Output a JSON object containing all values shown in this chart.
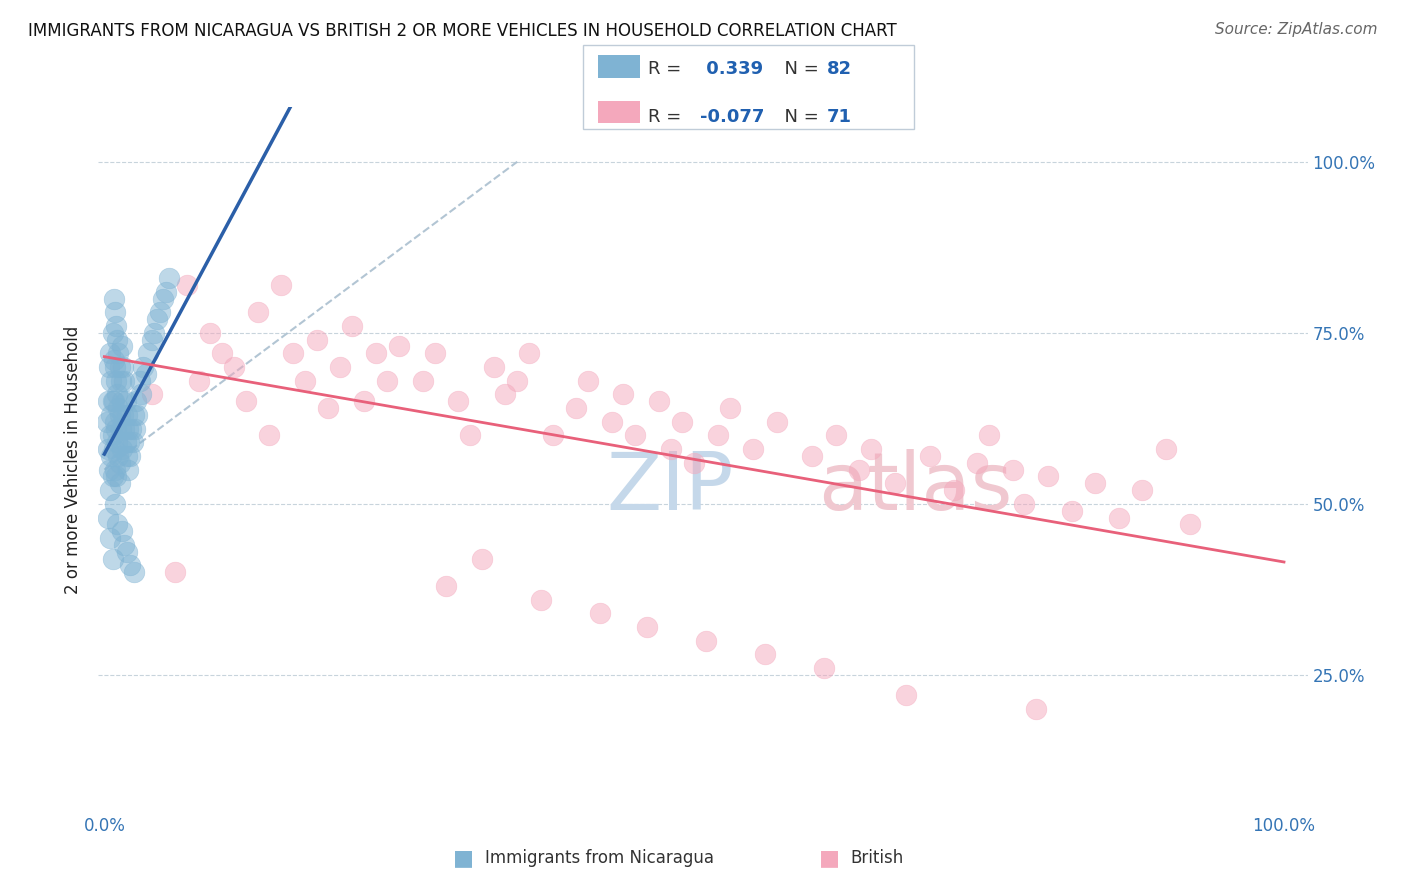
{
  "title": "IMMIGRANTS FROM NICARAGUA VS BRITISH 2 OR MORE VEHICLES IN HOUSEHOLD CORRELATION CHART",
  "source": "Source: ZipAtlas.com",
  "ylabel": "2 or more Vehicles in Household",
  "blue_color": "#7fb3d3",
  "pink_color": "#f4a8bc",
  "blue_line_color": "#2b5fa8",
  "pink_line_color": "#e8607a",
  "dashed_line_color": "#aabfcf",
  "blue_R": 0.339,
  "blue_N": 82,
  "pink_R": -0.077,
  "pink_N": 71,
  "watermark_zip_color": "#c5d8ea",
  "watermark_atlas_color": "#f0c8d0",
  "blue_x": [
    0.002,
    0.003,
    0.003,
    0.004,
    0.004,
    0.005,
    0.005,
    0.005,
    0.006,
    0.006,
    0.006,
    0.007,
    0.007,
    0.007,
    0.007,
    0.008,
    0.008,
    0.008,
    0.008,
    0.009,
    0.009,
    0.009,
    0.009,
    0.01,
    0.01,
    0.01,
    0.01,
    0.011,
    0.011,
    0.011,
    0.012,
    0.012,
    0.012,
    0.013,
    0.013,
    0.013,
    0.014,
    0.014,
    0.015,
    0.015,
    0.015,
    0.016,
    0.016,
    0.017,
    0.017,
    0.018,
    0.018,
    0.019,
    0.019,
    0.02,
    0.02,
    0.021,
    0.022,
    0.023,
    0.024,
    0.025,
    0.026,
    0.027,
    0.028,
    0.03,
    0.031,
    0.033,
    0.035,
    0.037,
    0.04,
    0.042,
    0.045,
    0.047,
    0.05,
    0.052,
    0.055,
    0.003,
    0.005,
    0.007,
    0.009,
    0.011,
    0.013,
    0.015,
    0.017,
    0.019,
    0.022,
    0.025
  ],
  "blue_y": [
    0.62,
    0.65,
    0.58,
    0.7,
    0.55,
    0.72,
    0.6,
    0.52,
    0.68,
    0.63,
    0.57,
    0.75,
    0.65,
    0.6,
    0.54,
    0.8,
    0.71,
    0.65,
    0.58,
    0.78,
    0.7,
    0.62,
    0.55,
    0.76,
    0.68,
    0.61,
    0.54,
    0.74,
    0.66,
    0.59,
    0.72,
    0.64,
    0.57,
    0.7,
    0.63,
    0.56,
    0.68,
    0.61,
    0.73,
    0.65,
    0.58,
    0.7,
    0.63,
    0.68,
    0.61,
    0.65,
    0.59,
    0.63,
    0.57,
    0.61,
    0.55,
    0.59,
    0.57,
    0.61,
    0.59,
    0.63,
    0.61,
    0.65,
    0.63,
    0.68,
    0.66,
    0.7,
    0.69,
    0.72,
    0.74,
    0.75,
    0.77,
    0.78,
    0.8,
    0.81,
    0.83,
    0.48,
    0.45,
    0.42,
    0.5,
    0.47,
    0.53,
    0.46,
    0.44,
    0.43,
    0.41,
    0.4
  ],
  "pink_x": [
    0.04,
    0.07,
    0.08,
    0.09,
    0.1,
    0.11,
    0.12,
    0.13,
    0.14,
    0.15,
    0.16,
    0.17,
    0.18,
    0.19,
    0.2,
    0.21,
    0.22,
    0.23,
    0.24,
    0.25,
    0.27,
    0.28,
    0.3,
    0.31,
    0.33,
    0.34,
    0.35,
    0.36,
    0.38,
    0.4,
    0.41,
    0.43,
    0.44,
    0.45,
    0.47,
    0.48,
    0.49,
    0.5,
    0.52,
    0.53,
    0.55,
    0.57,
    0.6,
    0.62,
    0.64,
    0.65,
    0.67,
    0.7,
    0.72,
    0.74,
    0.75,
    0.77,
    0.78,
    0.8,
    0.82,
    0.84,
    0.86,
    0.88,
    0.9,
    0.92,
    0.06,
    0.29,
    0.32,
    0.37,
    0.42,
    0.46,
    0.51,
    0.56,
    0.61,
    0.68,
    0.79
  ],
  "pink_y": [
    0.66,
    0.82,
    0.68,
    0.75,
    0.72,
    0.7,
    0.65,
    0.78,
    0.6,
    0.82,
    0.72,
    0.68,
    0.74,
    0.64,
    0.7,
    0.76,
    0.65,
    0.72,
    0.68,
    0.73,
    0.68,
    0.72,
    0.65,
    0.6,
    0.7,
    0.66,
    0.68,
    0.72,
    0.6,
    0.64,
    0.68,
    0.62,
    0.66,
    0.6,
    0.65,
    0.58,
    0.62,
    0.56,
    0.6,
    0.64,
    0.58,
    0.62,
    0.57,
    0.6,
    0.55,
    0.58,
    0.53,
    0.57,
    0.52,
    0.56,
    0.6,
    0.55,
    0.5,
    0.54,
    0.49,
    0.53,
    0.48,
    0.52,
    0.58,
    0.47,
    0.4,
    0.38,
    0.42,
    0.36,
    0.34,
    0.32,
    0.3,
    0.28,
    0.26,
    0.22,
    0.2
  ]
}
